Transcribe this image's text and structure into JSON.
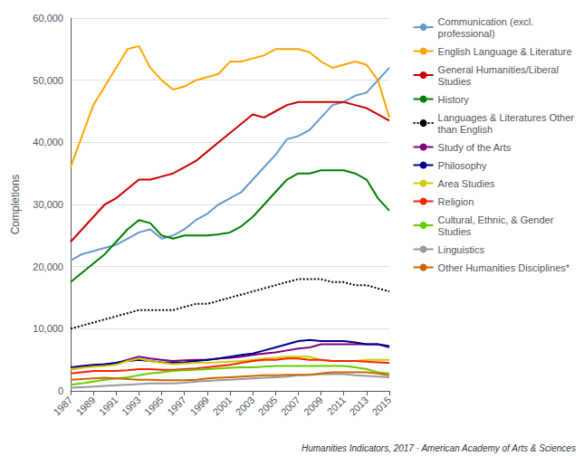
{
  "chart_data": {
    "type": "line",
    "x": [
      1987,
      1988,
      1989,
      1990,
      1991,
      1992,
      1993,
      1994,
      1995,
      1996,
      1997,
      1998,
      1999,
      2000,
      2001,
      2002,
      2003,
      2004,
      2005,
      2006,
      2007,
      2008,
      2009,
      2010,
      2011,
      2012,
      2013,
      2014,
      2015
    ],
    "series": [
      {
        "name": "Communication (excl.\nprofessional)",
        "color": "#6699CC",
        "line_style": "solid",
        "values": [
          21000,
          22000,
          22500,
          23000,
          23500,
          24500,
          25500,
          26000,
          24500,
          25000,
          26000,
          27500,
          28500,
          30000,
          31000,
          32000,
          34000,
          36000,
          38000,
          40500,
          41000,
          42000,
          44000,
          46000,
          46500,
          47500,
          48000,
          50000,
          52000
        ]
      },
      {
        "name": "English Language & Literature",
        "color": "#FFA500",
        "line_style": "solid",
        "values": [
          36000,
          41000,
          46000,
          49000,
          52000,
          55000,
          55500,
          52000,
          50000,
          48500,
          49000,
          50000,
          50500,
          51000,
          53000,
          53000,
          53500,
          54000,
          55000,
          55000,
          55000,
          54500,
          53000,
          52000,
          52500,
          53000,
          52500,
          50000,
          44000
        ]
      },
      {
        "name": "General Humanities/Liberal\nStudies",
        "color": "#CC0000",
        "line_style": "solid",
        "values": [
          24000,
          26000,
          28000,
          30000,
          31000,
          32500,
          34000,
          34000,
          34500,
          35000,
          36000,
          37000,
          38500,
          40000,
          41500,
          43000,
          44500,
          44000,
          45000,
          46000,
          46500,
          46500,
          46500,
          46500,
          46500,
          46000,
          45500,
          44500,
          43500
        ]
      },
      {
        "name": "History",
        "color": "#008000",
        "line_style": "solid",
        "values": [
          17500,
          19000,
          20500,
          22000,
          24000,
          26000,
          27500,
          27000,
          25000,
          24500,
          25000,
          25000,
          25000,
          25200,
          25500,
          26500,
          28000,
          30000,
          32000,
          34000,
          35000,
          35000,
          35500,
          35500,
          35500,
          35000,
          34000,
          31000,
          29000
        ]
      },
      {
        "name": "Languages & Literatures Other\nthan English",
        "color": "#000000",
        "line_style": "dotted",
        "values": [
          10000,
          10500,
          11000,
          11500,
          12000,
          12500,
          13000,
          13000,
          13000,
          13000,
          13500,
          14000,
          14000,
          14500,
          15000,
          15500,
          16000,
          16500,
          17000,
          17500,
          18000,
          18000,
          18000,
          17500,
          17500,
          17000,
          17000,
          16500,
          16000
        ]
      },
      {
        "name": "Study of the Arts",
        "color": "#800080",
        "line_style": "solid",
        "values": [
          3500,
          3800,
          4000,
          4200,
          4500,
          5000,
          5500,
          5200,
          5000,
          4800,
          4900,
          5000,
          5000,
          5200,
          5300,
          5500,
          5800,
          6000,
          6200,
          6500,
          6800,
          7000,
          7500,
          7500,
          7500,
          7500,
          7500,
          7500,
          7000
        ]
      },
      {
        "name": "Philosophy",
        "color": "#00008B",
        "line_style": "solid",
        "values": [
          3800,
          4000,
          4200,
          4300,
          4500,
          4800,
          5000,
          4800,
          4600,
          4500,
          4600,
          4800,
          5000,
          5200,
          5500,
          5800,
          6000,
          6500,
          7000,
          7500,
          8000,
          8200,
          8000,
          8000,
          8000,
          7800,
          7500,
          7500,
          7200
        ]
      },
      {
        "name": "Area Studies",
        "color": "#CCCC00",
        "line_style": "solid",
        "values": [
          3500,
          3700,
          3900,
          4000,
          4200,
          4800,
          5200,
          4800,
          4500,
          4300,
          4400,
          4500,
          4500,
          4600,
          4700,
          4800,
          5000,
          5200,
          5300,
          5500,
          5500,
          5500,
          5000,
          4800,
          4800,
          4800,
          5000,
          5000,
          5000
        ]
      },
      {
        "name": "Religion",
        "color": "#FF2200",
        "line_style": "solid",
        "values": [
          2800,
          3000,
          3200,
          3200,
          3200,
          3300,
          3500,
          3500,
          3400,
          3400,
          3500,
          3600,
          3800,
          4000,
          4200,
          4500,
          4800,
          5000,
          5000,
          5200,
          5200,
          5000,
          5000,
          4800,
          4800,
          4800,
          4700,
          4600,
          4500
        ]
      },
      {
        "name": "Cultural, Ethnic, & Gender\nStudies",
        "color": "#66CC00",
        "line_style": "solid",
        "values": [
          1000,
          1200,
          1500,
          1800,
          2000,
          2200,
          2500,
          2800,
          3000,
          3200,
          3300,
          3400,
          3500,
          3600,
          3700,
          3800,
          3800,
          3900,
          4000,
          4000,
          4000,
          4000,
          4000,
          4000,
          4000,
          3800,
          3500,
          3000,
          2800
        ]
      },
      {
        "name": "Linguistics",
        "color": "#999999",
        "line_style": "solid",
        "values": [
          500,
          600,
          700,
          800,
          900,
          1000,
          1100,
          1200,
          1200,
          1200,
          1300,
          1500,
          1600,
          1700,
          1800,
          1900,
          2000,
          2100,
          2200,
          2300,
          2500,
          2600,
          2700,
          2700,
          2700,
          2500,
          2400,
          2300,
          2200
        ]
      },
      {
        "name": "Other Humanities Disciplines*",
        "color": "#CC6600",
        "line_style": "solid",
        "values": [
          1800,
          1900,
          2000,
          2100,
          2000,
          1900,
          1800,
          1800,
          1700,
          1700,
          1700,
          1800,
          2000,
          2100,
          2200,
          2300,
          2400,
          2500,
          2500,
          2600,
          2600,
          2600,
          2800,
          3000,
          3000,
          3000,
          3000,
          2800,
          2500
        ]
      }
    ],
    "ylabel": "Completions",
    "xlim": [
      1987,
      2015
    ],
    "xticks": [
      1987,
      1989,
      1991,
      1993,
      1995,
      1997,
      1999,
      2001,
      2003,
      2005,
      2007,
      2009,
      2011,
      2013,
      2015
    ],
    "ylim": [
      0,
      60000
    ],
    "yticks": [
      0,
      {
        "value": 10000,
        "label": "10,000"
      },
      {
        "value": 20000,
        "label": "20,000"
      },
      {
        "value": 30000,
        "label": "30,000"
      },
      {
        "value": 40000,
        "label": "40,000"
      },
      {
        "value": 50000,
        "label": "50,000"
      },
      {
        "value": 60000,
        "label": "60,000"
      }
    ],
    "grid": true,
    "legend": "right",
    "annotations": [
      "Humanities Indicators, 2017 · American Academy of Arts & Sciences"
    ]
  }
}
